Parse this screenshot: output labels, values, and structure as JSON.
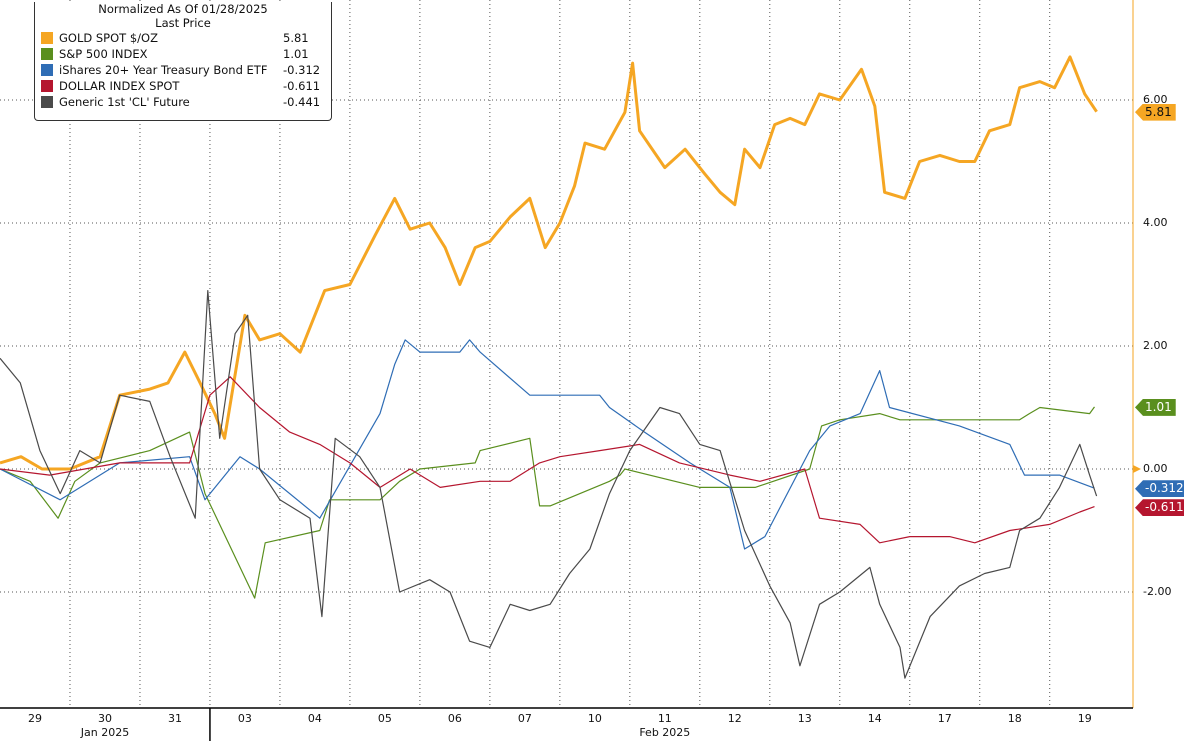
{
  "chart_data": {
    "type": "line",
    "title": "Normalized As Of 01/28/2025",
    "subtitle": "Last Price",
    "xlabel": "",
    "ylabel": "",
    "x_units": "trading days from Jan 29 2025 open",
    "x_tick_labels": [
      "29",
      "30",
      "31",
      "03",
      "04",
      "05",
      "06",
      "07",
      "10",
      "11",
      "12",
      "13",
      "14",
      "17",
      "18",
      "19"
    ],
    "month_labels": [
      {
        "label": "Jan 2025",
        "day": 1.5
      },
      {
        "label": "Feb 2025",
        "day": 9.5
      }
    ],
    "y_ticks": [
      "6.00",
      "4.00",
      "2.00",
      "0.00",
      "-2.00"
    ],
    "ylim": [
      -3.85,
      7.6
    ],
    "xlim": [
      0,
      16.19
    ],
    "grid": true,
    "legend_position": "top-left",
    "zero_label": "0.00",
    "series": [
      {
        "name": "GOLD SPOT $/OZ",
        "last": "5.81",
        "color": "#f5a623",
        "points": [
          [
            0,
            0.1
          ],
          [
            0.3,
            0.2
          ],
          [
            0.6,
            0.0
          ],
          [
            1.0,
            0.0
          ],
          [
            1.43,
            0.2
          ],
          [
            1.71,
            1.2
          ],
          [
            2.14,
            1.3
          ],
          [
            2.4,
            1.4
          ],
          [
            2.64,
            1.9
          ],
          [
            2.86,
            1.4
          ],
          [
            3.07,
            0.9
          ],
          [
            3.21,
            0.5
          ],
          [
            3.5,
            2.5
          ],
          [
            3.71,
            2.1
          ],
          [
            4.0,
            2.2
          ],
          [
            4.29,
            1.9
          ],
          [
            4.64,
            2.9
          ],
          [
            5.0,
            3.0
          ],
          [
            5.36,
            3.8
          ],
          [
            5.64,
            4.4
          ],
          [
            5.86,
            3.9
          ],
          [
            6.14,
            4.0
          ],
          [
            6.36,
            3.6
          ],
          [
            6.57,
            3.0
          ],
          [
            6.79,
            3.6
          ],
          [
            7.0,
            3.7
          ],
          [
            7.29,
            4.1
          ],
          [
            7.57,
            4.4
          ],
          [
            7.79,
            3.6
          ],
          [
            8.0,
            4.0
          ],
          [
            8.21,
            4.6
          ],
          [
            8.36,
            5.3
          ],
          [
            8.64,
            5.2
          ],
          [
            8.93,
            5.8
          ],
          [
            9.04,
            6.6
          ],
          [
            9.14,
            5.5
          ],
          [
            9.5,
            4.9
          ],
          [
            9.79,
            5.2
          ],
          [
            10.07,
            4.8
          ],
          [
            10.29,
            4.5
          ],
          [
            10.5,
            4.3
          ],
          [
            10.64,
            5.2
          ],
          [
            10.86,
            4.9
          ],
          [
            11.07,
            5.6
          ],
          [
            11.29,
            5.7
          ],
          [
            11.5,
            5.6
          ],
          [
            11.71,
            6.1
          ],
          [
            12.0,
            6.0
          ],
          [
            12.31,
            6.5
          ],
          [
            12.5,
            5.9
          ],
          [
            12.64,
            4.5
          ],
          [
            12.93,
            4.4
          ],
          [
            13.14,
            5.0
          ],
          [
            13.43,
            5.1
          ],
          [
            13.71,
            5.0
          ],
          [
            13.93,
            5.0
          ],
          [
            14.14,
            5.5
          ],
          [
            14.43,
            5.6
          ],
          [
            14.57,
            6.2
          ],
          [
            14.86,
            6.3
          ],
          [
            15.07,
            6.2
          ],
          [
            15.29,
            6.7
          ],
          [
            15.5,
            6.1
          ],
          [
            15.67,
            5.81
          ]
        ]
      },
      {
        "name": "S&P 500 INDEX",
        "last": "1.01",
        "color": "#5a8f1e",
        "points": [
          [
            0,
            0.0
          ],
          [
            0.43,
            -0.2
          ],
          [
            0.83,
            -0.8
          ],
          [
            1.07,
            -0.2
          ],
          [
            1.43,
            0.1
          ],
          [
            2.14,
            0.3
          ],
          [
            2.71,
            0.6
          ],
          [
            2.93,
            -0.4
          ],
          [
            3.64,
            -2.1
          ],
          [
            3.79,
            -1.2
          ],
          [
            4.57,
            -1.0
          ],
          [
            4.71,
            -0.5
          ],
          [
            5.43,
            -0.5
          ],
          [
            5.71,
            -0.2
          ],
          [
            6.0,
            0.0
          ],
          [
            6.79,
            0.1
          ],
          [
            6.86,
            0.3
          ],
          [
            7.57,
            0.5
          ],
          [
            7.71,
            -0.6
          ],
          [
            7.86,
            -0.6
          ],
          [
            8.71,
            -0.2
          ],
          [
            8.86,
            -0.1
          ],
          [
            8.93,
            0.0
          ],
          [
            10.0,
            -0.3
          ],
          [
            10.79,
            -0.3
          ],
          [
            11.57,
            0.0
          ],
          [
            11.74,
            0.7
          ],
          [
            12.0,
            0.8
          ],
          [
            12.57,
            0.9
          ],
          [
            12.86,
            0.8
          ],
          [
            14.57,
            0.8
          ],
          [
            14.71,
            0.9
          ],
          [
            14.86,
            1.0
          ],
          [
            15.57,
            0.9
          ],
          [
            15.64,
            1.01
          ]
        ]
      },
      {
        "name": "iShares 20+ Year Treasury Bond ETF",
        "last": "-0.312",
        "color": "#2f6db5",
        "points": [
          [
            0,
            0.0
          ],
          [
            0.86,
            -0.5
          ],
          [
            1.71,
            0.1
          ],
          [
            2.71,
            0.2
          ],
          [
            2.93,
            -0.5
          ],
          [
            3.43,
            0.2
          ],
          [
            3.71,
            0.0
          ],
          [
            4.57,
            -0.8
          ],
          [
            5.43,
            0.9
          ],
          [
            5.64,
            1.7
          ],
          [
            5.79,
            2.1
          ],
          [
            6.0,
            1.9
          ],
          [
            6.57,
            1.9
          ],
          [
            6.71,
            2.1
          ],
          [
            6.86,
            1.9
          ],
          [
            7.57,
            1.2
          ],
          [
            7.79,
            1.2
          ],
          [
            8.57,
            1.2
          ],
          [
            8.71,
            1.0
          ],
          [
            9.21,
            0.6
          ],
          [
            9.86,
            0.1
          ],
          [
            10.43,
            -0.3
          ],
          [
            10.64,
            -1.3
          ],
          [
            10.93,
            -1.1
          ],
          [
            11.57,
            0.3
          ],
          [
            11.86,
            0.7
          ],
          [
            12.29,
            0.9
          ],
          [
            12.57,
            1.6
          ],
          [
            12.71,
            1.0
          ],
          [
            13.71,
            0.7
          ],
          [
            14.43,
            0.4
          ],
          [
            14.64,
            -0.1
          ],
          [
            15.14,
            -0.1
          ],
          [
            15.64,
            -0.312
          ]
        ]
      },
      {
        "name": "DOLLAR INDEX SPOT",
        "last": "-0.611",
        "color": "#b5162f",
        "points": [
          [
            0,
            0.0
          ],
          [
            0.71,
            -0.1
          ],
          [
            1.71,
            0.1
          ],
          [
            2.71,
            0.1
          ],
          [
            3.0,
            1.2
          ],
          [
            3.29,
            1.5
          ],
          [
            3.71,
            1.0
          ],
          [
            4.14,
            0.6
          ],
          [
            4.57,
            0.4
          ],
          [
            5.0,
            0.1
          ],
          [
            5.43,
            -0.3
          ],
          [
            5.86,
            0.0
          ],
          [
            6.29,
            -0.3
          ],
          [
            6.86,
            -0.2
          ],
          [
            7.29,
            -0.2
          ],
          [
            7.71,
            0.1
          ],
          [
            8.0,
            0.2
          ],
          [
            8.57,
            0.3
          ],
          [
            9.14,
            0.4
          ],
          [
            9.71,
            0.1
          ],
          [
            10.43,
            -0.1
          ],
          [
            10.86,
            -0.2
          ],
          [
            11.5,
            0.0
          ],
          [
            11.71,
            -0.8
          ],
          [
            12.29,
            -0.9
          ],
          [
            12.57,
            -1.2
          ],
          [
            13.0,
            -1.1
          ],
          [
            13.57,
            -1.1
          ],
          [
            13.93,
            -1.2
          ],
          [
            14.43,
            -1.0
          ],
          [
            15.0,
            -0.9
          ],
          [
            15.43,
            -0.7
          ],
          [
            15.64,
            -0.611
          ]
        ]
      },
      {
        "name": "Generic 1st 'CL' Future",
        "last": "-0.441",
        "color": "#4a4a4a",
        "points": [
          [
            0,
            1.8
          ],
          [
            0.29,
            1.4
          ],
          [
            0.57,
            0.3
          ],
          [
            0.86,
            -0.4
          ],
          [
            1.14,
            0.3
          ],
          [
            1.43,
            0.1
          ],
          [
            1.71,
            1.2
          ],
          [
            2.14,
            1.1
          ],
          [
            2.43,
            0.2
          ],
          [
            2.79,
            -0.8
          ],
          [
            2.97,
            2.9
          ],
          [
            3.14,
            0.5
          ],
          [
            3.36,
            2.2
          ],
          [
            3.54,
            2.5
          ],
          [
            3.71,
            0.0
          ],
          [
            4.0,
            -0.5
          ],
          [
            4.43,
            -0.8
          ],
          [
            4.6,
            -2.4
          ],
          [
            4.79,
            0.5
          ],
          [
            5.14,
            0.2
          ],
          [
            5.43,
            -0.3
          ],
          [
            5.71,
            -2.0
          ],
          [
            6.14,
            -1.8
          ],
          [
            6.43,
            -2.0
          ],
          [
            6.71,
            -2.8
          ],
          [
            7.0,
            -2.9
          ],
          [
            7.29,
            -2.2
          ],
          [
            7.57,
            -2.3
          ],
          [
            7.86,
            -2.2
          ],
          [
            8.14,
            -1.7
          ],
          [
            8.43,
            -1.3
          ],
          [
            8.71,
            -0.4
          ],
          [
            9.0,
            0.3
          ],
          [
            9.43,
            1.0
          ],
          [
            9.71,
            0.9
          ],
          [
            10.0,
            0.4
          ],
          [
            10.29,
            0.3
          ],
          [
            10.64,
            -1.0
          ],
          [
            11.0,
            -1.9
          ],
          [
            11.29,
            -2.5
          ],
          [
            11.43,
            -3.2
          ],
          [
            11.71,
            -2.2
          ],
          [
            12.0,
            -2.0
          ],
          [
            12.43,
            -1.6
          ],
          [
            12.57,
            -2.2
          ],
          [
            12.86,
            -2.9
          ],
          [
            12.93,
            -3.4
          ],
          [
            13.29,
            -2.4
          ],
          [
            13.71,
            -1.9
          ],
          [
            14.07,
            -1.7
          ],
          [
            14.43,
            -1.6
          ],
          [
            14.57,
            -1.0
          ],
          [
            14.86,
            -0.8
          ],
          [
            15.14,
            -0.3
          ],
          [
            15.43,
            0.4
          ],
          [
            15.57,
            -0.1
          ],
          [
            15.67,
            -0.441
          ]
        ]
      }
    ]
  }
}
